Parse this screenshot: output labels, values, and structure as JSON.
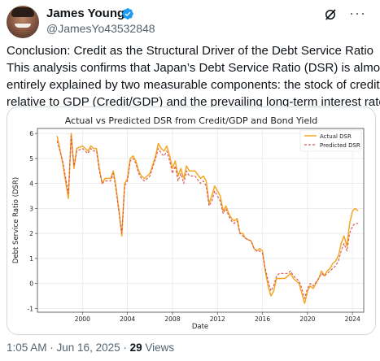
{
  "author": {
    "name": "James Young",
    "handle": "@JamesYo43532848",
    "verified_color": "#1d9bf0"
  },
  "header_icons": [
    "grok-icon",
    "more-icon"
  ],
  "post": {
    "lines": [
      "Conclusion: Credit as the Structural Driver of the Debt Service Ratio",
      "This analysis confirms that Japan’s Debt Service Ratio (DSR) is almost",
      "entirely explained by two measurable components: the stock of credit",
      "relative to GDP (Credit/GDP) and the prevailing long-term interest rate."
    ]
  },
  "meta": {
    "time": "1:05 AM",
    "separator": " · ",
    "date": "Jun 16, 2025",
    "views_count": "29",
    "views_label": " Views"
  },
  "chart_data": {
    "type": "line",
    "title": "Actual vs Predicted DSR from Credit/GDP and Bond Yield",
    "xlabel": "Date",
    "ylabel": "Debt Service Ratio (DSR)",
    "xlim": [
      1996.0,
      2025.0
    ],
    "ylim": [
      -1.15,
      6.2
    ],
    "xticks": [
      2000,
      2004,
      2008,
      2012,
      2016,
      2020,
      2024
    ],
    "yticks": [
      -1,
      0,
      1,
      2,
      3,
      4,
      5,
      6
    ],
    "grid": true,
    "legend_position": "top-right",
    "series": [
      {
        "name": "Actual DSR",
        "color": "#f5a623",
        "style": "solid",
        "points": [
          [
            1997.75,
            5.9
          ],
          [
            1998.25,
            4.8
          ],
          [
            1998.75,
            3.4
          ],
          [
            1999.0,
            6.0
          ],
          [
            1999.25,
            4.6
          ],
          [
            1999.5,
            5.4
          ],
          [
            2000.0,
            5.5
          ],
          [
            2000.5,
            5.3
          ],
          [
            2000.75,
            5.5
          ],
          [
            2001.0,
            5.4
          ],
          [
            2001.25,
            5.4
          ],
          [
            2001.5,
            4.6
          ],
          [
            2001.75,
            4.0
          ],
          [
            2002.0,
            4.2
          ],
          [
            2002.5,
            4.2
          ],
          [
            2002.75,
            4.5
          ],
          [
            2003.0,
            3.8
          ],
          [
            2003.25,
            2.9
          ],
          [
            2003.5,
            1.9
          ],
          [
            2003.75,
            4.0
          ],
          [
            2004.0,
            4.2
          ],
          [
            2004.25,
            5.0
          ],
          [
            2004.5,
            5.1
          ],
          [
            2004.75,
            4.9
          ],
          [
            2005.0,
            4.5
          ],
          [
            2005.25,
            4.3
          ],
          [
            2005.5,
            4.2
          ],
          [
            2006.0,
            4.4
          ],
          [
            2006.5,
            5.1
          ],
          [
            2006.75,
            5.6
          ],
          [
            2007.0,
            5.4
          ],
          [
            2007.25,
            5.3
          ],
          [
            2007.5,
            5.5
          ],
          [
            2007.75,
            5.1
          ],
          [
            2008.0,
            4.6
          ],
          [
            2008.25,
            4.9
          ],
          [
            2008.5,
            4.3
          ],
          [
            2008.75,
            4.6
          ],
          [
            2009.0,
            4.2
          ],
          [
            2009.25,
            4.7
          ],
          [
            2009.5,
            4.5
          ],
          [
            2010.0,
            4.5
          ],
          [
            2010.5,
            4.2
          ],
          [
            2010.75,
            4.3
          ],
          [
            2011.0,
            4.1
          ],
          [
            2011.25,
            3.2
          ],
          [
            2011.5,
            3.5
          ],
          [
            2011.75,
            3.9
          ],
          [
            2012.0,
            3.7
          ],
          [
            2012.25,
            3.5
          ],
          [
            2012.5,
            2.9
          ],
          [
            2012.75,
            3.1
          ],
          [
            2013.0,
            2.8
          ],
          [
            2013.25,
            2.6
          ],
          [
            2013.5,
            2.5
          ],
          [
            2013.75,
            2.6
          ],
          [
            2014.0,
            2.0
          ],
          [
            2014.25,
            2.0
          ],
          [
            2014.5,
            1.8
          ],
          [
            2015.0,
            1.7
          ],
          [
            2015.25,
            1.4
          ],
          [
            2015.5,
            1.3
          ],
          [
            2015.75,
            1.4
          ],
          [
            2016.0,
            1.3
          ],
          [
            2016.25,
            0.5
          ],
          [
            2016.5,
            -0.1
          ],
          [
            2016.75,
            -0.5
          ],
          [
            2017.0,
            -0.3
          ],
          [
            2017.25,
            0.2
          ],
          [
            2017.5,
            0.2
          ],
          [
            2018.0,
            0.2
          ],
          [
            2018.25,
            0.3
          ],
          [
            2018.5,
            0.4
          ],
          [
            2018.75,
            0.2
          ],
          [
            2019.0,
            0.1
          ],
          [
            2019.25,
            0.0
          ],
          [
            2019.5,
            -0.4
          ],
          [
            2019.75,
            -0.8
          ],
          [
            2020.0,
            -0.3
          ],
          [
            2020.25,
            -0.1
          ],
          [
            2020.5,
            -0.2
          ],
          [
            2021.0,
            0.2
          ],
          [
            2021.25,
            0.5
          ],
          [
            2021.5,
            0.3
          ],
          [
            2021.75,
            0.5
          ],
          [
            2022.0,
            0.6
          ],
          [
            2022.25,
            0.8
          ],
          [
            2022.5,
            0.9
          ],
          [
            2022.75,
            1.1
          ],
          [
            2023.0,
            1.6
          ],
          [
            2023.25,
            1.9
          ],
          [
            2023.5,
            1.5
          ],
          [
            2023.75,
            2.4
          ],
          [
            2024.0,
            2.9
          ],
          [
            2024.25,
            3.0
          ],
          [
            2024.5,
            2.9
          ]
        ]
      },
      {
        "name": "Predicted DSR",
        "color": "#d9534f",
        "style": "dashed",
        "points": [
          [
            1997.75,
            5.7
          ],
          [
            1998.25,
            4.9
          ],
          [
            1998.75,
            3.6
          ],
          [
            1999.0,
            5.9
          ],
          [
            1999.25,
            4.7
          ],
          [
            1999.5,
            5.3
          ],
          [
            2000.0,
            5.4
          ],
          [
            2000.5,
            5.2
          ],
          [
            2000.75,
            5.4
          ],
          [
            2001.0,
            5.3
          ],
          [
            2001.25,
            5.3
          ],
          [
            2001.5,
            4.5
          ],
          [
            2001.75,
            4.0
          ],
          [
            2002.0,
            4.1
          ],
          [
            2002.5,
            4.1
          ],
          [
            2002.75,
            4.4
          ],
          [
            2003.0,
            3.7
          ],
          [
            2003.25,
            2.8
          ],
          [
            2003.5,
            2.0
          ],
          [
            2003.75,
            3.9
          ],
          [
            2004.0,
            4.1
          ],
          [
            2004.25,
            4.9
          ],
          [
            2004.5,
            5.0
          ],
          [
            2004.75,
            4.8
          ],
          [
            2005.0,
            4.4
          ],
          [
            2005.25,
            4.2
          ],
          [
            2005.5,
            4.1
          ],
          [
            2006.0,
            4.3
          ],
          [
            2006.5,
            5.0
          ],
          [
            2006.75,
            5.4
          ],
          [
            2007.0,
            5.2
          ],
          [
            2007.25,
            5.1
          ],
          [
            2007.5,
            5.3
          ],
          [
            2007.75,
            4.9
          ],
          [
            2008.0,
            4.4
          ],
          [
            2008.25,
            4.7
          ],
          [
            2008.5,
            4.1
          ],
          [
            2008.75,
            4.4
          ],
          [
            2009.0,
            4.0
          ],
          [
            2009.25,
            4.5
          ],
          [
            2009.5,
            4.3
          ],
          [
            2010.0,
            4.3
          ],
          [
            2010.5,
            4.0
          ],
          [
            2010.75,
            4.1
          ],
          [
            2011.0,
            3.9
          ],
          [
            2011.25,
            3.1
          ],
          [
            2011.5,
            3.3
          ],
          [
            2011.75,
            3.7
          ],
          [
            2012.0,
            3.5
          ],
          [
            2012.25,
            3.3
          ],
          [
            2012.5,
            2.8
          ],
          [
            2012.75,
            3.0
          ],
          [
            2013.0,
            2.7
          ],
          [
            2013.25,
            2.5
          ],
          [
            2013.5,
            2.4
          ],
          [
            2013.75,
            2.5
          ],
          [
            2014.0,
            2.0
          ],
          [
            2014.25,
            1.9
          ],
          [
            2014.5,
            1.8
          ],
          [
            2015.0,
            1.7
          ],
          [
            2015.25,
            1.4
          ],
          [
            2015.5,
            1.3
          ],
          [
            2015.75,
            1.3
          ],
          [
            2016.0,
            1.2
          ],
          [
            2016.25,
            0.6
          ],
          [
            2016.5,
            0.1
          ],
          [
            2016.75,
            -0.3
          ],
          [
            2017.0,
            -0.1
          ],
          [
            2017.25,
            0.3
          ],
          [
            2017.5,
            0.4
          ],
          [
            2018.0,
            0.4
          ],
          [
            2018.25,
            0.4
          ],
          [
            2018.5,
            0.5
          ],
          [
            2018.75,
            0.3
          ],
          [
            2019.0,
            0.2
          ],
          [
            2019.25,
            0.1
          ],
          [
            2019.5,
            -0.2
          ],
          [
            2019.75,
            -0.6
          ],
          [
            2020.0,
            -0.2
          ],
          [
            2020.25,
            0.0
          ],
          [
            2020.5,
            -0.1
          ],
          [
            2021.0,
            0.2
          ],
          [
            2021.25,
            0.4
          ],
          [
            2021.5,
            0.3
          ],
          [
            2021.75,
            0.4
          ],
          [
            2022.0,
            0.5
          ],
          [
            2022.25,
            0.6
          ],
          [
            2022.5,
            0.7
          ],
          [
            2022.75,
            0.9
          ],
          [
            2023.0,
            1.3
          ],
          [
            2023.25,
            1.6
          ],
          [
            2023.5,
            1.3
          ],
          [
            2023.75,
            2.0
          ],
          [
            2024.0,
            2.3
          ],
          [
            2024.25,
            2.4
          ],
          [
            2024.5,
            2.4
          ]
        ]
      }
    ]
  }
}
